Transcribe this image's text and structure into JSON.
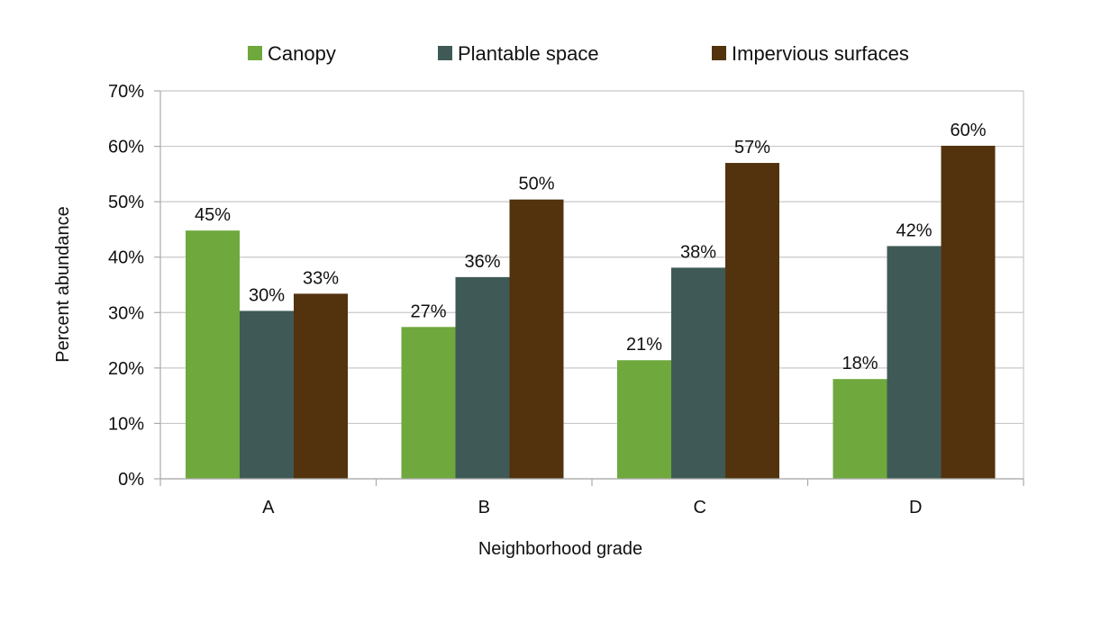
{
  "chart_data": {
    "type": "bar",
    "title": "",
    "xlabel": "Neighborhood grade",
    "ylabel": "Percent abundance",
    "categories": [
      "A",
      "B",
      "C",
      "D"
    ],
    "ylim": [
      0,
      70
    ],
    "yticks": [
      "0%",
      "10%",
      "20%",
      "30%",
      "40%",
      "50%",
      "60%",
      "70%"
    ],
    "grid": true,
    "legend_position": "top",
    "series": [
      {
        "name": "Canopy",
        "color": "#6fa83d",
        "values": [
          44.8,
          27.4,
          21.4,
          18.0
        ],
        "labels": [
          "45%",
          "27%",
          "21%",
          "18%"
        ]
      },
      {
        "name": "Plantable space",
        "color": "#3f5a56",
        "values": [
          30.3,
          36.4,
          38.1,
          42.0
        ],
        "labels": [
          "30%",
          "36%",
          "38%",
          "42%"
        ]
      },
      {
        "name": "Impervious surfaces",
        "color": "#52330e",
        "values": [
          33.4,
          50.4,
          57.0,
          60.1
        ],
        "labels": [
          "33%",
          "50%",
          "57%",
          "60%"
        ]
      }
    ]
  }
}
